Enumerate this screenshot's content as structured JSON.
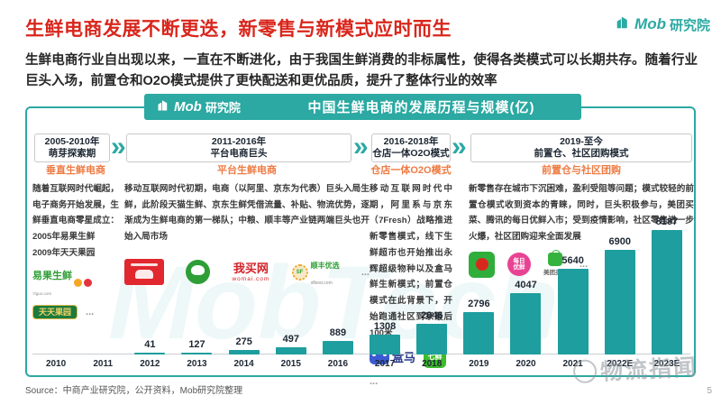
{
  "brand": {
    "name_en": "Mob",
    "name_cn": "研究院"
  },
  "slide": {
    "title": "生鲜电商发展不断更迭，新零售与新模式应时而生",
    "intro": "生鲜电商行业自出现以来，一直在不断进化，由于我国生鲜消费的非标属性，使得各类模式可以长期共存。随着行业巨头入场，前置仓和O2O模式提供了更快配送和更优品质，提升了整体行业的效率",
    "source": "Source：中商产业研究院，公开资料，Mob研究院整理",
    "page_number": "5",
    "watermark_big": "MobTech",
    "watermark_stamp": "物流指闻"
  },
  "panel_header": {
    "title": "中国生鲜电商的发展历程与规模(亿)"
  },
  "timeline": {
    "stages": [
      {
        "period": "2005-2010年",
        "label": "萌芽探索期"
      },
      {
        "period": "2011-2016年",
        "label": "平台电商巨头"
      },
      {
        "period": "2016-2018年",
        "label": "仓店一体O2O模式"
      },
      {
        "period": "2019-至今",
        "label": "前置仓、社区团购模式"
      }
    ]
  },
  "columns": [
    {
      "title": "垂直生鲜电商",
      "body": "随着互联网时代崛起，电子商务开始发展，生鲜垂直电商零星成立：\n2005年易果生鲜\n2009年天天果园"
    },
    {
      "title": "平台生鲜电商",
      "body": "移动互联网时代初期，电商（以阿里、京东为代表）巨头入局生鲜，此阶段天猫生鲜、京东生鲜凭借流量、补贴、物流优势，逐渐成为生鲜电商的第一梯队；中粮、顺丰等产业链两端巨头也开始入局市场"
    },
    {
      "title": "仓店一体O2O模式",
      "body": "移动互联网时代中期，阿里系与京东（7Fresh）战略推进新零售模式，线下生鲜超市也开始推出永辉超级物种以及盒马鲜生新模式；前置仓模式在此背景下，开始跑通社区到家最后100米"
    },
    {
      "title": "前置仓与社区团购",
      "body": "新零售存在城市下沉困难，盈利受阻等问题；模式较轻的前置仓模式收到资本的青睐，同时，巨头积极参与，美团买菜、腾讯的每日优鲜入市；受到疫情影响，社区零售进一步火爆，社区团购迎来全面发展"
    }
  ],
  "logos": {
    "yiguo": {
      "label": "易果生鲜",
      "sub": "Yiguo.com"
    },
    "tiantian": {
      "label": "天天果园"
    },
    "womai": {
      "label": "我买网",
      "sub": "womai.com"
    },
    "sfbest": {
      "label": "顺丰优选",
      "sub": "sfbest.com",
      "badge": "SF"
    },
    "hema": {
      "label": "盒马"
    },
    "qixian": {
      "label": "七鲜"
    },
    "meiri": {
      "label": "每日\n优鲜"
    },
    "meituan": {
      "label": "美团买菜"
    },
    "ellipsis": "..."
  },
  "chart_data": {
    "type": "bar",
    "title": "中国生鲜电商的发展历程与规模(亿)",
    "unit": "亿",
    "categories": [
      "2010",
      "2011",
      "2012",
      "2013",
      "2014",
      "2015",
      "2016",
      "2017",
      "2018",
      "2019",
      "2020",
      "2021",
      "2022E",
      "2023E"
    ],
    "values": [
      null,
      null,
      41,
      127,
      275,
      497,
      889,
      1308,
      2046,
      2796,
      4047,
      5640,
      6900,
      8187
    ],
    "ylim": [
      0,
      8187
    ],
    "bar_color": "#1e9e9e",
    "grid": false,
    "value_labels": true,
    "xlabel": "",
    "ylabel": ""
  },
  "colors": {
    "accent_teal": "#2ba9a2",
    "bar_teal": "#1e9e9e",
    "title_red": "#d9261c",
    "column_header_orange": "#ee7b43",
    "text_dark": "#262626"
  }
}
